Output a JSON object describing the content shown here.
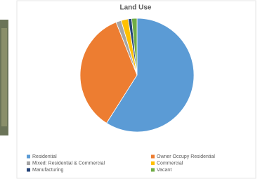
{
  "chart_data": {
    "type": "pie",
    "title": "Land Use",
    "categories": [
      "Residential",
      "Owner Occupy Residential",
      "Mixed: Residential & Commercial",
      "Commercial",
      "Manufacturing",
      "Vacant"
    ],
    "values": [
      59,
      35,
      1.5,
      2,
      1,
      1.5
    ],
    "colors": [
      "#5b9bd5",
      "#ed7d31",
      "#a5a5a5",
      "#ffc000",
      "#264478",
      "#70ad47"
    ],
    "legend": "bottom"
  }
}
